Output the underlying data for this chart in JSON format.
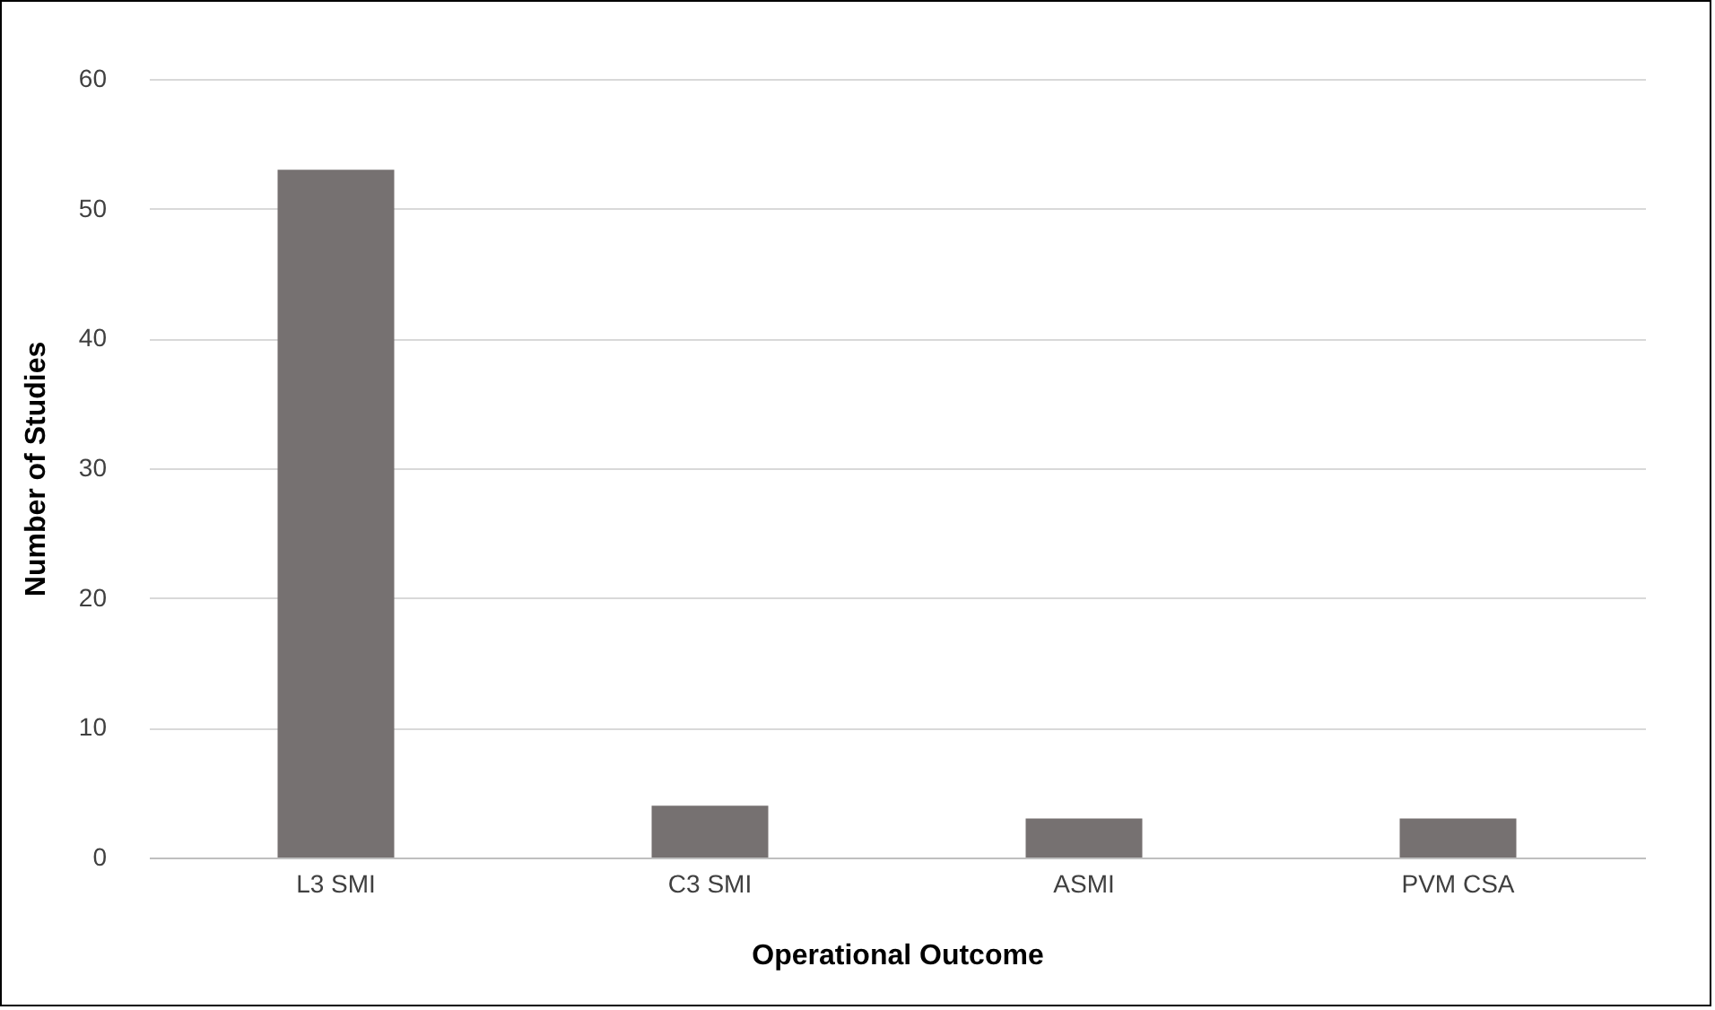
{
  "chart_data": {
    "type": "bar",
    "xlabel": "Operational  Outcome",
    "ylabel": "Number of Studies",
    "categories": [
      "L3 SMI",
      "C3 SMI",
      "ASMI",
      "PVM CSA"
    ],
    "values": [
      53,
      4,
      3,
      3
    ],
    "color": "#767171",
    "ylim": [
      0,
      60
    ],
    "yticks": [
      0,
      10,
      20,
      30,
      40,
      50,
      60
    ],
    "grid": "y"
  }
}
